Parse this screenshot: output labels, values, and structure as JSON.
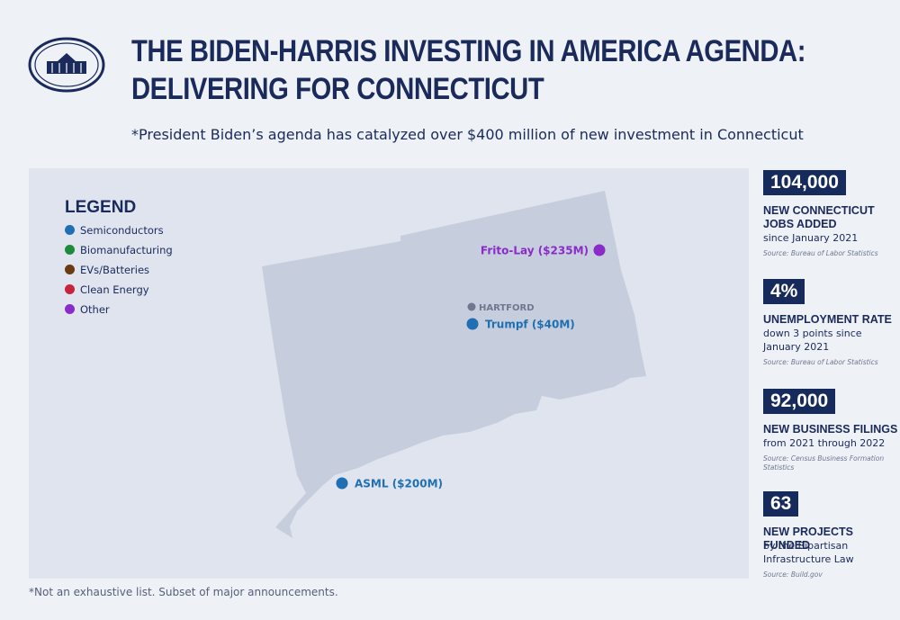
{
  "header": {
    "title": [
      "THE BIDEN-HARRIS INVESTING IN AMERICA AGENDA:",
      "DELIVERING FOR CONNECTICUT"
    ],
    "subtitle": "*President Biden’s agenda has catalyzed over $400 million of new investment in Connecticut"
  },
  "legend": {
    "title": "LEGEND",
    "items": [
      {
        "label": "Semiconductors",
        "color": "#1f6fb2"
      },
      {
        "label": "Biomanufacturing",
        "color": "#1e8a3c"
      },
      {
        "label": "EVs/Batteries",
        "color": "#6b3a12"
      },
      {
        "label": "Clean Energy",
        "color": "#c8233c"
      },
      {
        "label": "Other",
        "color": "#8a2bc9"
      }
    ]
  },
  "map": {
    "city": {
      "label": "HARTFORD",
      "color": "#6f7890"
    },
    "markers": [
      {
        "label": "Frito-Lay ($235M)",
        "color": "#8a2bc9"
      },
      {
        "label": "Trumpf ($40M)",
        "color": "#1f6fb2"
      },
      {
        "label": "ASML ($200M)",
        "color": "#1f6fb2"
      }
    ]
  },
  "stats": [
    {
      "value": "104,000",
      "heading": [
        "NEW CONNECTICUT",
        "JOBS ADDED"
      ],
      "description": [
        "since January 2021"
      ],
      "source": [
        "Source: Bureau of Labor Statistics"
      ]
    },
    {
      "value": "4%",
      "heading": [
        "UNEMPLOYMENT RATE"
      ],
      "description": [
        "down 3 points since",
        "January 2021"
      ],
      "source": [
        "Source: Bureau of Labor Statistics"
      ]
    },
    {
      "value": "92,000",
      "heading": [
        "NEW BUSINESS FILINGS"
      ],
      "description": [
        "from 2021 through 2022"
      ],
      "source": [
        "Source: Census Business Formation",
        "Statistics"
      ]
    },
    {
      "value": "63",
      "heading": [
        "NEW PROJECTS FUNDED"
      ],
      "description": [
        "by the Bipartisan",
        "Infrastructure Law"
      ],
      "source": [
        "Source: Build.gov"
      ]
    }
  ],
  "footnote": "*Not an exhaustive list. Subset of major announcements."
}
